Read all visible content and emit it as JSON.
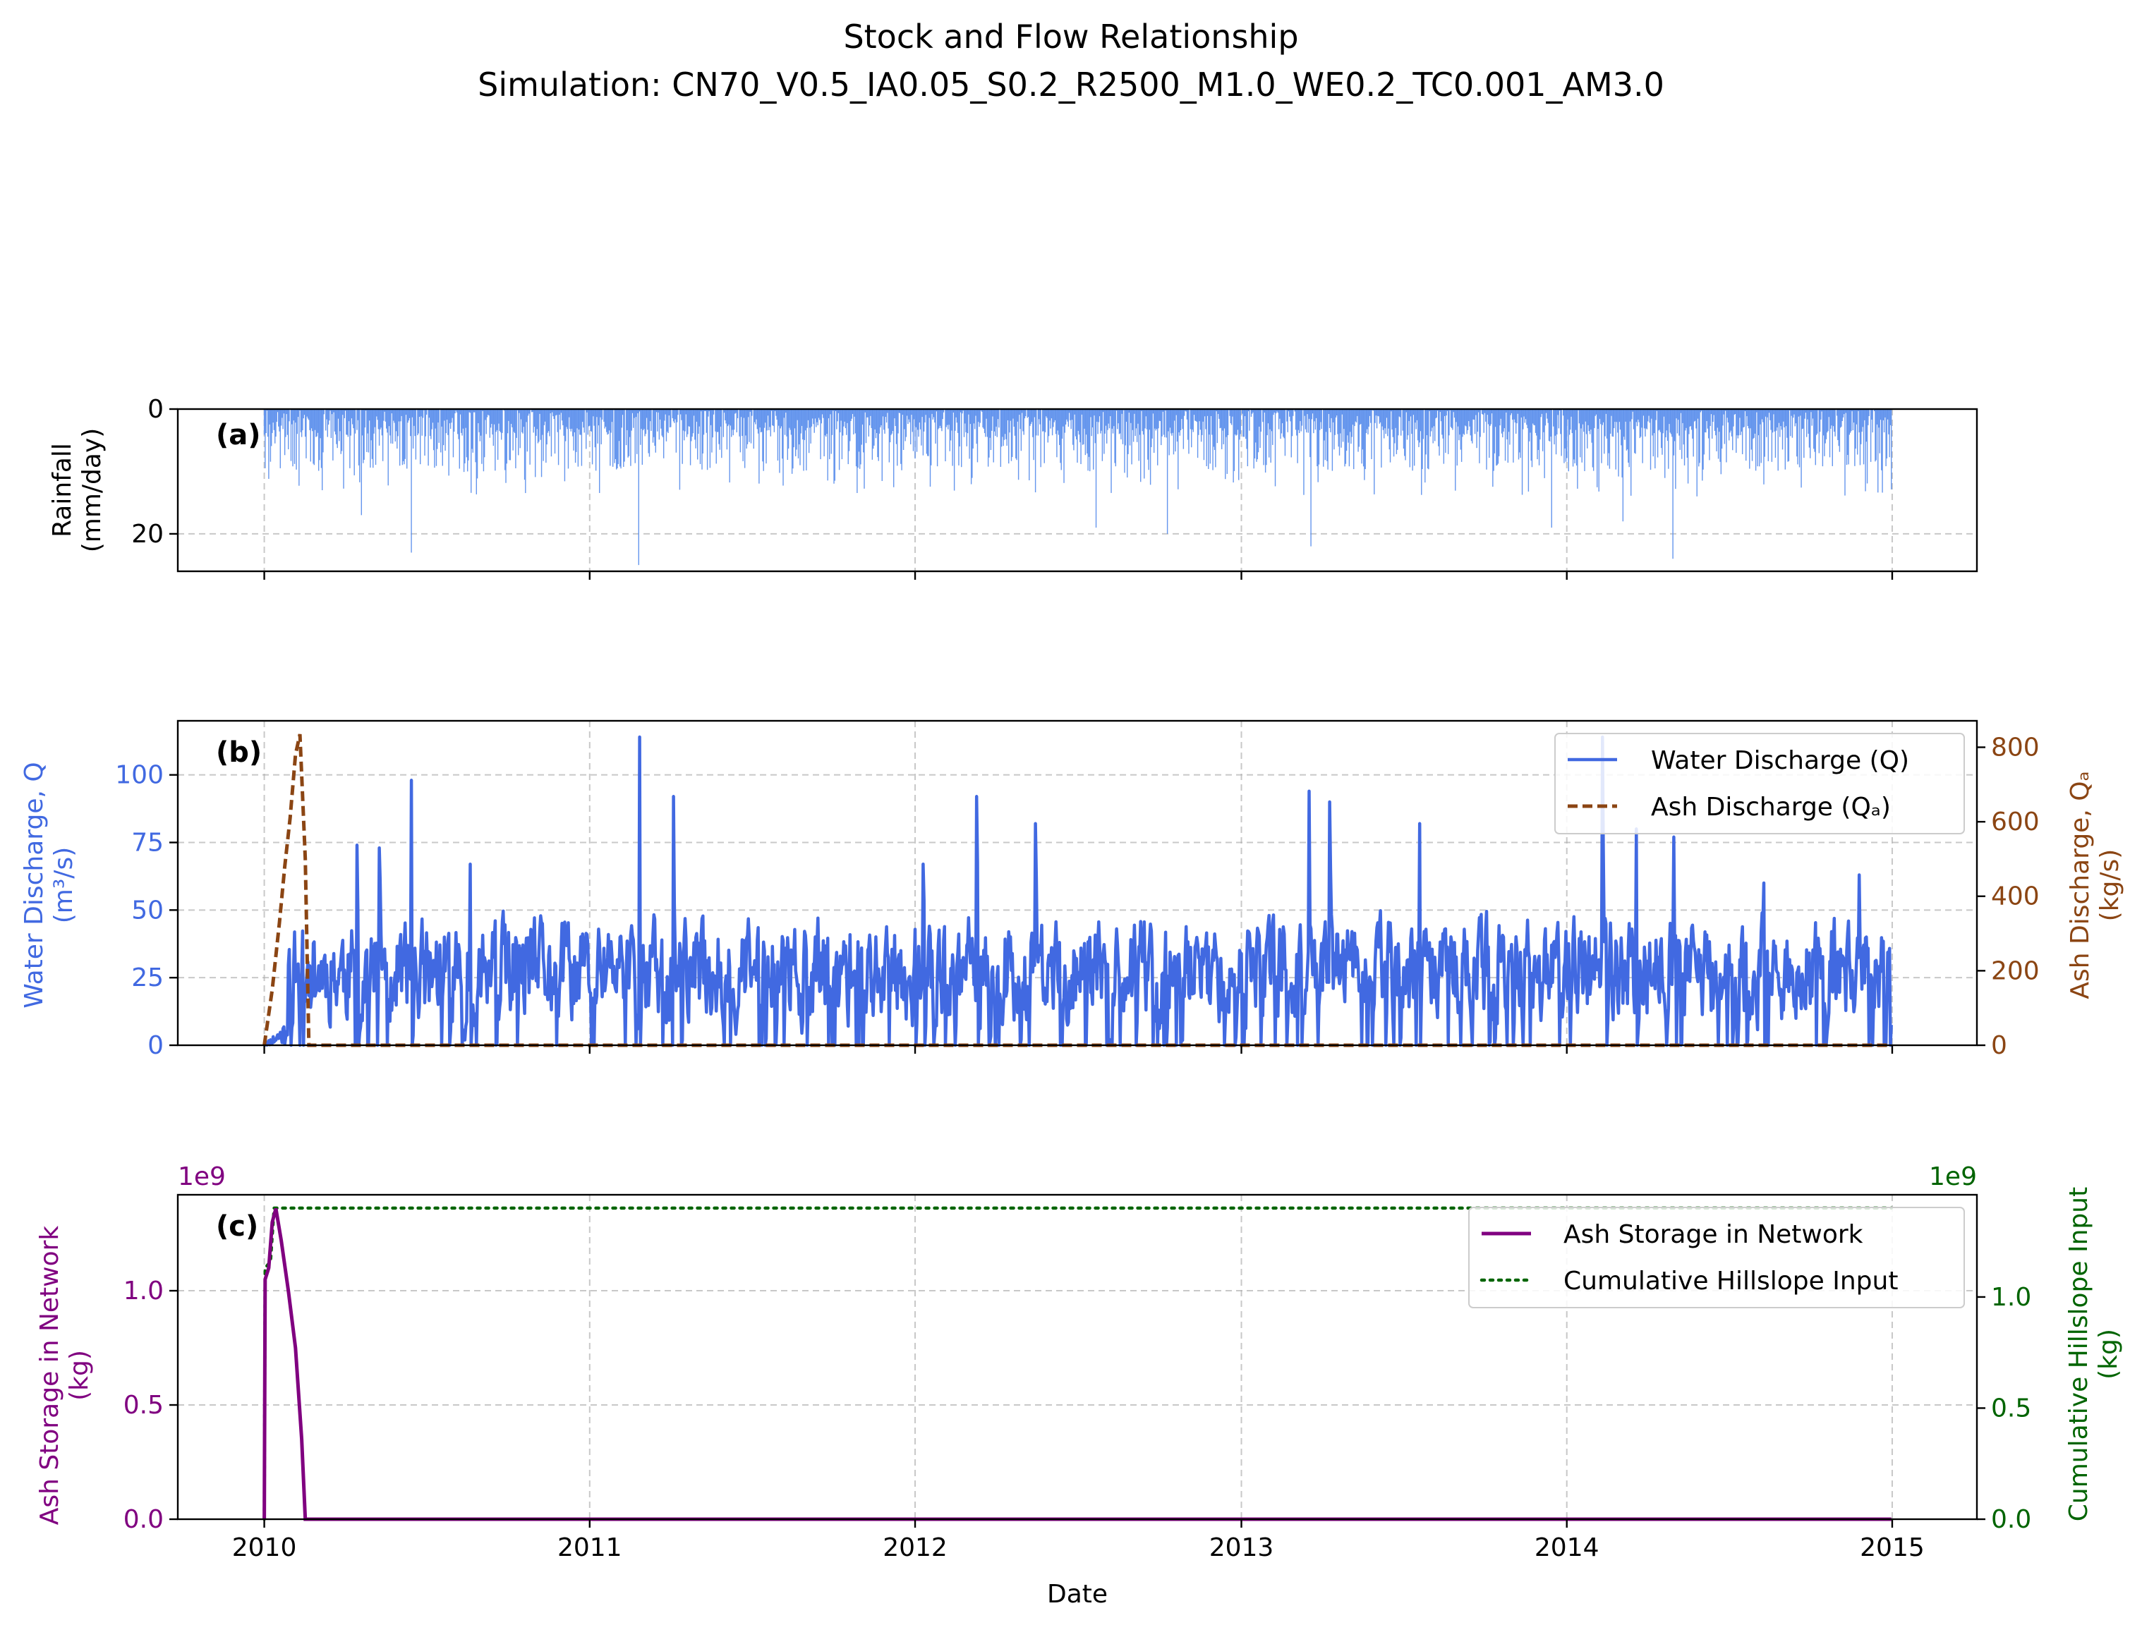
{
  "figure": {
    "title": "Stock and Flow Relationship",
    "subtitle": "Simulation: CN70_V0.5_IA0.05_S0.2_R2500_M1.0_WE0.2_TC0.001_AM3.0",
    "xlabel": "Date",
    "x_ticks": [
      "2010",
      "2011",
      "2012",
      "2013",
      "2014",
      "2015"
    ],
    "x_range": [
      "2009-09-26",
      "2015-04-06"
    ]
  },
  "colors": {
    "rain": "#6495ed",
    "water": "#4169e1",
    "ash": "#8b4513",
    "storage": "#800080",
    "hillslope": "#006400",
    "grid": "#b0b0b0"
  },
  "chart_data": [
    {
      "panel": "(a)",
      "type": "bar",
      "ylabel_lines": [
        "Rainfall",
        "(mm/day)"
      ],
      "yticks": [
        "0",
        "20"
      ],
      "ylim": [
        26,
        0
      ],
      "inverted_y": true,
      "grid": true,
      "series": [
        {
          "name": "",
          "x_start": "2010-01-01",
          "x_end": "2014-12-31",
          "frequency": "daily",
          "typical_max": 12,
          "peaks": [
            {
              "date": "2010-04-20",
              "value": 17
            },
            {
              "date": "2010-06-15",
              "value": 23
            },
            {
              "date": "2011-02-25",
              "value": 25
            },
            {
              "date": "2012-07-22",
              "value": 19
            },
            {
              "date": "2012-10-10",
              "value": 20
            },
            {
              "date": "2013-03-20",
              "value": 22
            },
            {
              "date": "2013-12-15",
              "value": 19
            },
            {
              "date": "2014-03-05",
              "value": 18
            },
            {
              "date": "2014-04-30",
              "value": 24
            }
          ]
        }
      ]
    },
    {
      "panel": "(b)",
      "type": "line",
      "ylabel": "Water Discharge, Q",
      "ylabel_unit": "(m³/s)",
      "ylim": [
        0,
        120
      ],
      "yticks": [
        "0",
        "25",
        "50",
        "75",
        "100"
      ],
      "y2label": "Ash Discharge, Qₐ",
      "y2label_unit": "(kg/s)",
      "y2lim": [
        0,
        871
      ],
      "y2ticks": [
        "0",
        "200",
        "400",
        "600",
        "800"
      ],
      "grid": true,
      "legend_position": "top-right",
      "legend": [
        "Water Discharge (Q)",
        "Ash Discharge (Qₐ)"
      ],
      "series": [
        {
          "name": "Water Discharge (Q)",
          "axis": "left",
          "x_start": "2010-01-01",
          "x_end": "2014-12-31",
          "frequency": "daily",
          "typical_range": [
            0,
            55
          ],
          "peaks": [
            {
              "date": "2010-04-15",
              "value": 74
            },
            {
              "date": "2010-05-10",
              "value": 73
            },
            {
              "date": "2010-06-15",
              "value": 98
            },
            {
              "date": "2010-08-20",
              "value": 67
            },
            {
              "date": "2011-02-26",
              "value": 114
            },
            {
              "date": "2011-04-05",
              "value": 92
            },
            {
              "date": "2012-01-10",
              "value": 67
            },
            {
              "date": "2012-03-10",
              "value": 92
            },
            {
              "date": "2012-05-15",
              "value": 82
            },
            {
              "date": "2013-03-18",
              "value": 94
            },
            {
              "date": "2013-04-10",
              "value": 90
            },
            {
              "date": "2013-07-20",
              "value": 82
            },
            {
              "date": "2014-02-10",
              "value": 114
            },
            {
              "date": "2014-03-20",
              "value": 80
            },
            {
              "date": "2014-05-01",
              "value": 77
            },
            {
              "date": "2014-08-10",
              "value": 60
            },
            {
              "date": "2014-11-25",
              "value": 63
            }
          ]
        },
        {
          "name": "Ash Discharge (Qₐ)",
          "axis": "right",
          "points": [
            {
              "date": "2010-01-01",
              "value": 0
            },
            {
              "date": "2010-01-10",
              "value": 150
            },
            {
              "date": "2010-01-18",
              "value": 330
            },
            {
              "date": "2010-01-24",
              "value": 480
            },
            {
              "date": "2010-01-30",
              "value": 610
            },
            {
              "date": "2010-02-05",
              "value": 780
            },
            {
              "date": "2010-02-10",
              "value": 835
            },
            {
              "date": "2010-02-16",
              "value": 500
            },
            {
              "date": "2010-02-20",
              "value": 0
            },
            {
              "date": "2014-12-31",
              "value": 0
            }
          ]
        }
      ]
    },
    {
      "panel": "(c)",
      "type": "line",
      "ylabel": "Ash Storage in Network",
      "ylabel_unit": "(kg)",
      "ylim": [
        0,
        1.42
      ],
      "yticks": [
        "0.0",
        "0.5",
        "1.0"
      ],
      "y_offset_label": "1e9",
      "y2label": "Cumulative Hillslope Input",
      "y2label_unit": "(kg)",
      "y2lim": [
        0,
        1.46
      ],
      "y2ticks": [
        "0.0",
        "0.5",
        "1.0"
      ],
      "y2_offset_label": "1e9",
      "grid": true,
      "legend_position": "top-right",
      "legend": [
        "Ash Storage in Network",
        "Cumulative Hillslope Input"
      ],
      "series": [
        {
          "name": "Ash Storage in Network",
          "axis": "left",
          "points": [
            {
              "date": "2010-01-01",
              "value": 0.0
            },
            {
              "date": "2010-01-02",
              "value": 1.05
            },
            {
              "date": "2010-01-06",
              "value": 1.1
            },
            {
              "date": "2010-01-10",
              "value": 1.3
            },
            {
              "date": "2010-01-14",
              "value": 1.36
            },
            {
              "date": "2010-01-20",
              "value": 1.22
            },
            {
              "date": "2010-01-28",
              "value": 1.0
            },
            {
              "date": "2010-02-05",
              "value": 0.75
            },
            {
              "date": "2010-02-12",
              "value": 0.35
            },
            {
              "date": "2010-02-16",
              "value": 0.0
            },
            {
              "date": "2014-12-31",
              "value": 0.0
            }
          ]
        },
        {
          "name": "Cumulative Hillslope Input",
          "axis": "right",
          "points": [
            {
              "date": "2010-01-01",
              "value": 0.0
            },
            {
              "date": "2010-01-02",
              "value": 1.13
            },
            {
              "date": "2010-01-08",
              "value": 1.16
            },
            {
              "date": "2010-01-12",
              "value": 1.4
            },
            {
              "date": "2014-12-31",
              "value": 1.4
            }
          ]
        }
      ]
    }
  ]
}
